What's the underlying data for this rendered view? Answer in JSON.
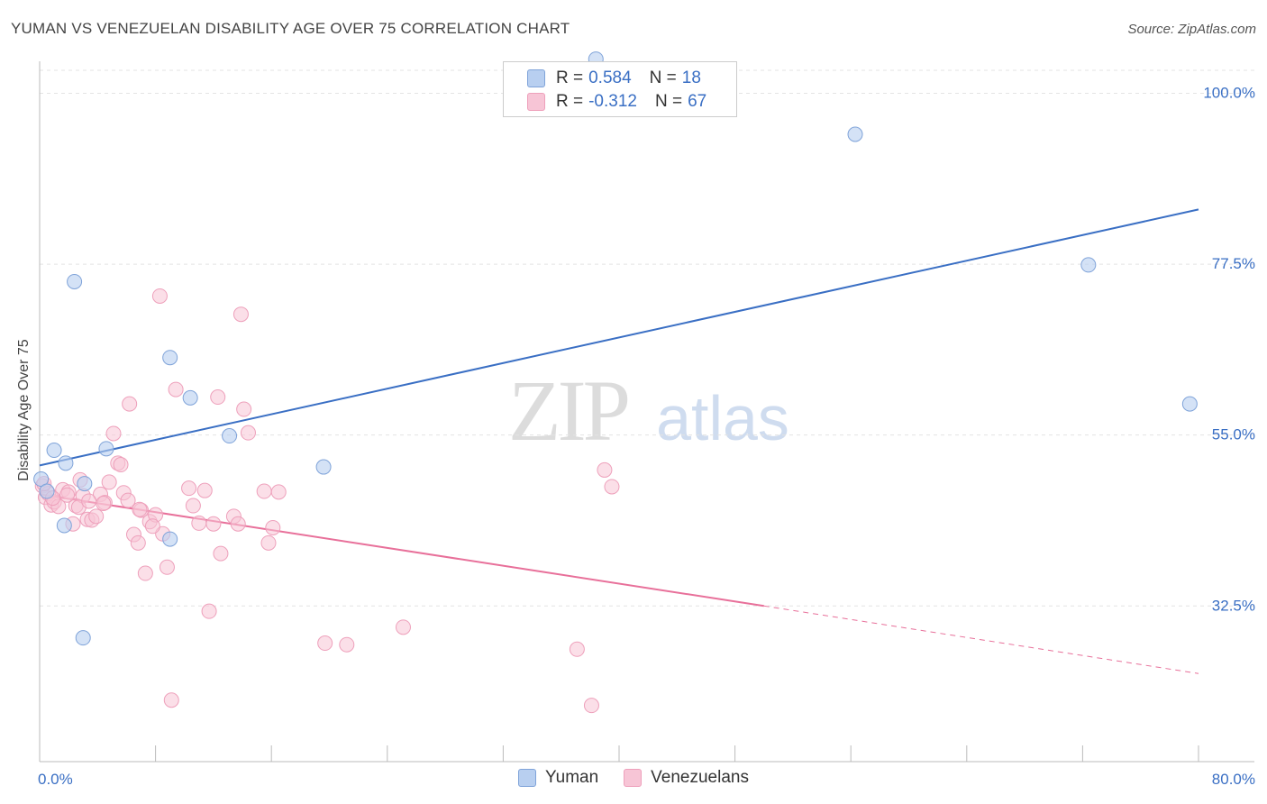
{
  "title": "YUMAN VS VENEZUELAN DISABILITY AGE OVER 75 CORRELATION CHART",
  "source": "Source: ZipAtlas.com",
  "watermark": {
    "zip": "ZIP",
    "atlas": "atlas"
  },
  "colors": {
    "blue": "#3a6fc4",
    "blue_fill": "#b8cff0",
    "blue_stroke": "#7fa3d9",
    "pink": "#e8709a",
    "pink_fill": "#f7c5d6",
    "pink_stroke": "#eea0bb",
    "grid": "#e3e3e3",
    "axis_text": "#3a6fc4"
  },
  "legend": {
    "rows": [
      {
        "r_label": "R =",
        "r_value": "0.584",
        "n_label": "N =",
        "n_value": "18"
      },
      {
        "r_label": "R =",
        "r_value": "-0.312",
        "n_label": "N =",
        "n_value": "67"
      }
    ]
  },
  "bottom_legend": {
    "series1": "Yuman",
    "series2": "Venezuelans"
  },
  "chart_data": {
    "type": "scatter",
    "title": "YUMAN VS VENEZUELAN DISABILITY AGE OVER 75 CORRELATION CHART",
    "xlabel": "",
    "ylabel": "Disability Age Over 75",
    "xlim": [
      0,
      80
    ],
    "ylim": [
      12.0,
      103.5
    ],
    "x_tick_labels": [
      "0.0%",
      "80.0%"
    ],
    "y_ticks": [
      32.5,
      55.0,
      77.5,
      100.0
    ],
    "y_tick_labels": [
      "32.5%",
      "55.0%",
      "77.5%",
      "100.0%"
    ],
    "grid": true,
    "series": [
      {
        "name": "Yuman",
        "r": 0.584,
        "n": 18,
        "trend": {
          "x": [
            0,
            80
          ],
          "y": [
            51.0,
            84.7
          ]
        },
        "points": [
          {
            "x": 0.1,
            "y": 49.2
          },
          {
            "x": 0.5,
            "y": 47.6
          },
          {
            "x": 1.0,
            "y": 53.0
          },
          {
            "x": 1.8,
            "y": 51.3
          },
          {
            "x": 1.7,
            "y": 43.1
          },
          {
            "x": 2.4,
            "y": 75.2
          },
          {
            "x": 3.1,
            "y": 48.6
          },
          {
            "x": 3.0,
            "y": 28.3
          },
          {
            "x": 4.6,
            "y": 53.2
          },
          {
            "x": 9.0,
            "y": 65.2
          },
          {
            "x": 10.4,
            "y": 59.9
          },
          {
            "x": 9.0,
            "y": 41.3
          },
          {
            "x": 13.1,
            "y": 54.9
          },
          {
            "x": 19.6,
            "y": 50.8
          },
          {
            "x": 56.3,
            "y": 94.6
          },
          {
            "x": 72.4,
            "y": 77.4
          },
          {
            "x": 79.4,
            "y": 59.1
          },
          {
            "x": 38.4,
            "y": 104.5
          }
        ]
      },
      {
        "name": "Venezuelans",
        "r": -0.312,
        "n": 67,
        "trend": {
          "x": [
            0,
            50
          ],
          "y": [
            47.2,
            32.5
          ]
        },
        "trend_dashed": {
          "x": [
            50,
            80
          ],
          "y": [
            32.5,
            23.6
          ]
        },
        "points": [
          {
            "x": 0.2,
            "y": 48.3
          },
          {
            "x": 0.4,
            "y": 46.8
          },
          {
            "x": 0.6,
            "y": 47.3
          },
          {
            "x": 0.8,
            "y": 45.8
          },
          {
            "x": 1.0,
            "y": 46.2
          },
          {
            "x": 1.3,
            "y": 45.6
          },
          {
            "x": 1.6,
            "y": 47.8
          },
          {
            "x": 2.0,
            "y": 47.5
          },
          {
            "x": 2.3,
            "y": 43.3
          },
          {
            "x": 2.5,
            "y": 45.7
          },
          {
            "x": 2.8,
            "y": 49.1
          },
          {
            "x": 3.0,
            "y": 47.0
          },
          {
            "x": 3.3,
            "y": 43.9
          },
          {
            "x": 3.6,
            "y": 43.8
          },
          {
            "x": 3.9,
            "y": 44.3
          },
          {
            "x": 4.2,
            "y": 47.2
          },
          {
            "x": 4.5,
            "y": 46.1
          },
          {
            "x": 4.8,
            "y": 48.8
          },
          {
            "x": 5.1,
            "y": 55.2
          },
          {
            "x": 5.4,
            "y": 51.3
          },
          {
            "x": 5.6,
            "y": 51.1
          },
          {
            "x": 5.8,
            "y": 47.4
          },
          {
            "x": 6.1,
            "y": 46.4
          },
          {
            "x": 6.2,
            "y": 59.1
          },
          {
            "x": 6.5,
            "y": 41.9
          },
          {
            "x": 6.8,
            "y": 40.8
          },
          {
            "x": 7.0,
            "y": 45.1
          },
          {
            "x": 7.3,
            "y": 36.8
          },
          {
            "x": 7.6,
            "y": 43.6
          },
          {
            "x": 8.0,
            "y": 44.5
          },
          {
            "x": 8.3,
            "y": 73.3
          },
          {
            "x": 8.5,
            "y": 42.0
          },
          {
            "x": 8.8,
            "y": 37.6
          },
          {
            "x": 9.1,
            "y": 20.1
          },
          {
            "x": 9.4,
            "y": 61.0
          },
          {
            "x": 10.3,
            "y": 48.0
          },
          {
            "x": 10.6,
            "y": 45.7
          },
          {
            "x": 11.0,
            "y": 43.4
          },
          {
            "x": 11.4,
            "y": 47.7
          },
          {
            "x": 11.7,
            "y": 31.8
          },
          {
            "x": 12.0,
            "y": 43.3
          },
          {
            "x": 12.3,
            "y": 60.0
          },
          {
            "x": 12.5,
            "y": 39.4
          },
          {
            "x": 13.4,
            "y": 44.3
          },
          {
            "x": 13.7,
            "y": 43.3
          },
          {
            "x": 13.9,
            "y": 70.9
          },
          {
            "x": 14.1,
            "y": 58.4
          },
          {
            "x": 14.4,
            "y": 55.3
          },
          {
            "x": 15.5,
            "y": 47.6
          },
          {
            "x": 15.8,
            "y": 40.8
          },
          {
            "x": 16.1,
            "y": 42.8
          },
          {
            "x": 16.5,
            "y": 47.5
          },
          {
            "x": 19.7,
            "y": 27.6
          },
          {
            "x": 21.2,
            "y": 27.4
          },
          {
            "x": 25.1,
            "y": 29.7
          },
          {
            "x": 39.0,
            "y": 50.4
          },
          {
            "x": 39.5,
            "y": 48.2
          },
          {
            "x": 37.1,
            "y": 26.8
          },
          {
            "x": 38.1,
            "y": 19.4
          },
          {
            "x": 2.7,
            "y": 45.5
          },
          {
            "x": 3.4,
            "y": 46.3
          },
          {
            "x": 4.4,
            "y": 46.0
          },
          {
            "x": 6.9,
            "y": 45.2
          },
          {
            "x": 7.8,
            "y": 43.0
          },
          {
            "x": 0.9,
            "y": 46.7
          },
          {
            "x": 1.9,
            "y": 47.1
          },
          {
            "x": 0.3,
            "y": 48.6
          }
        ]
      }
    ]
  }
}
